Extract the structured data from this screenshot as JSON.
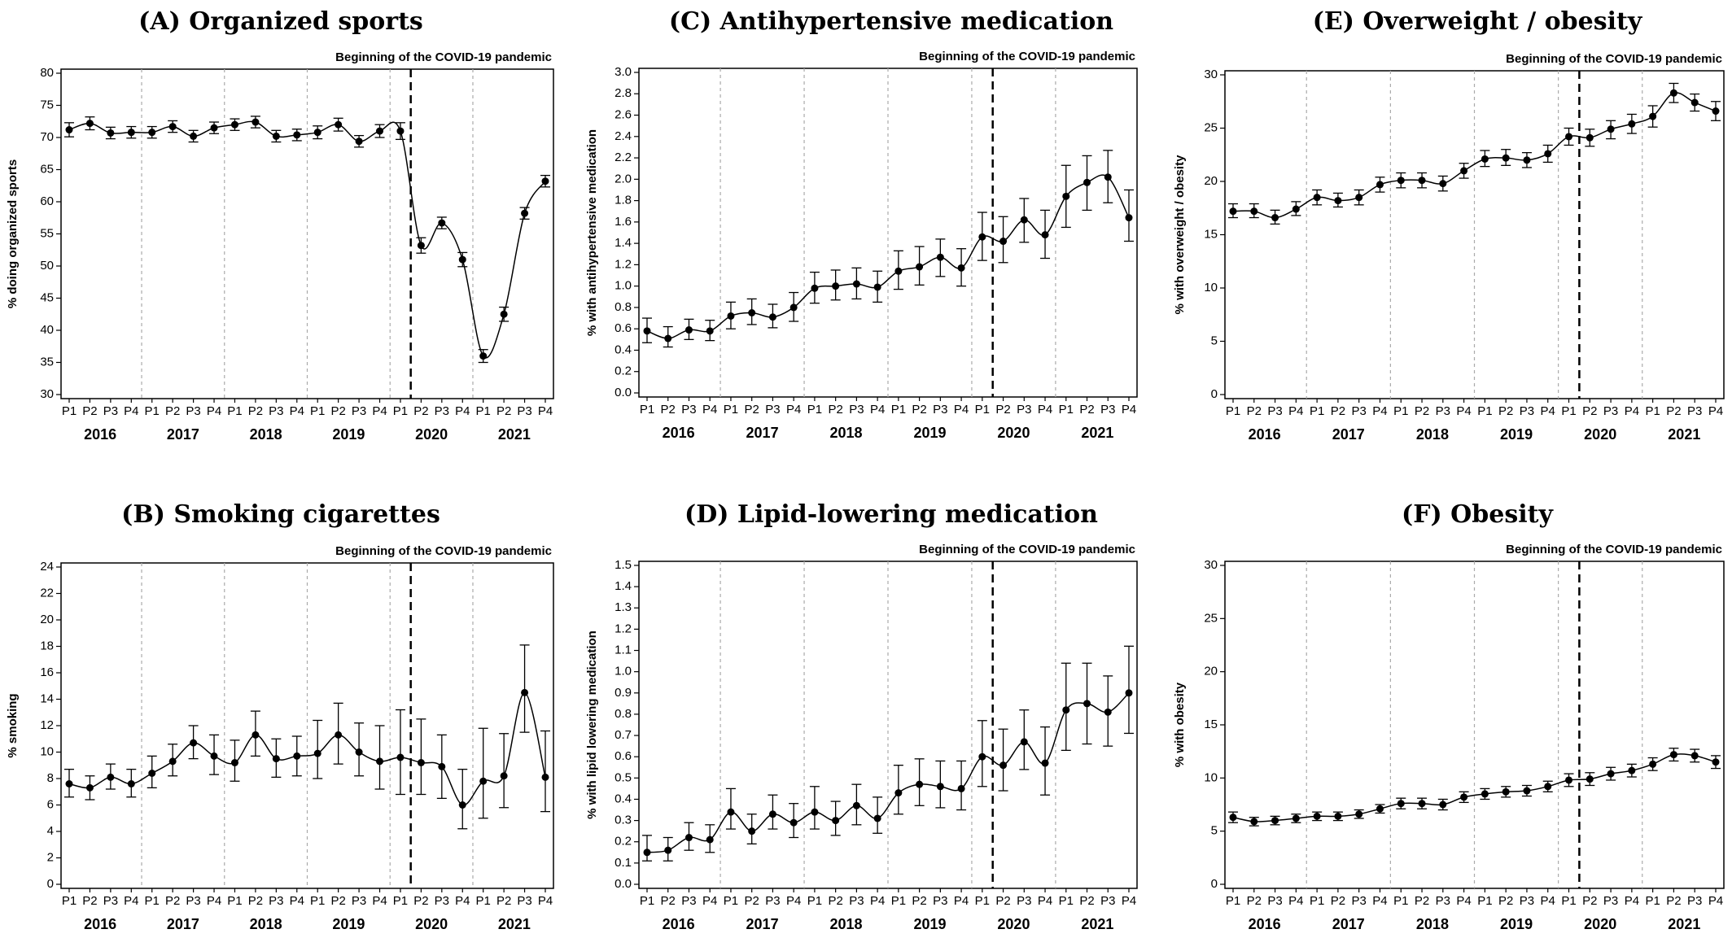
{
  "covid_label": "Beginning of the COVID-19 pandemic",
  "period_labels": [
    "P1",
    "P2",
    "P3",
    "P4"
  ],
  "years": [
    "2016",
    "2017",
    "2018",
    "2019",
    "2020",
    "2021"
  ],
  "chart_data": [
    {
      "id": "A",
      "type": "line",
      "title": "(A) Organized sports",
      "ylabel": "% doing organized sports",
      "ylim": [
        30,
        80
      ],
      "yticks": [
        30,
        35,
        40,
        45,
        50,
        55,
        60,
        65,
        70,
        75,
        80
      ],
      "tick_decimals": 0,
      "x_categories": [
        "2016 P1",
        "2016 P2",
        "2016 P3",
        "2016 P4",
        "2017 P1",
        "2017 P2",
        "2017 P3",
        "2017 P4",
        "2018 P1",
        "2018 P2",
        "2018 P3",
        "2018 P4",
        "2019 P1",
        "2019 P2",
        "2019 P3",
        "2019 P4",
        "2020 P1",
        "2020 P2",
        "2020 P3",
        "2020 P4",
        "2021 P1",
        "2021 P2",
        "2021 P3",
        "2021 P4"
      ],
      "values": [
        71.2,
        72.2,
        70.7,
        70.8,
        70.8,
        71.7,
        70.2,
        71.5,
        72.0,
        72.4,
        70.2,
        70.4,
        70.8,
        72.0,
        69.4,
        71.0,
        71.0,
        53.2,
        56.7,
        51.0,
        36.0,
        42.5,
        58.2,
        63.2
      ],
      "lower": [
        70.1,
        71.2,
        69.8,
        69.9,
        69.9,
        70.8,
        69.3,
        70.6,
        71.1,
        71.5,
        69.3,
        69.5,
        69.8,
        71.0,
        68.5,
        70.0,
        69.7,
        52.0,
        55.8,
        49.9,
        35.0,
        41.4,
        57.3,
        62.3
      ],
      "upper": [
        72.3,
        73.2,
        71.6,
        71.7,
        71.7,
        72.6,
        71.1,
        72.4,
        72.9,
        73.3,
        71.1,
        71.3,
        71.8,
        73.0,
        70.3,
        72.0,
        72.3,
        54.4,
        57.6,
        52.1,
        37.0,
        43.6,
        59.1,
        64.1
      ]
    },
    {
      "id": "B",
      "type": "line",
      "title": "(B) Smoking cigarettes",
      "ylabel": "% smoking",
      "ylim": [
        0,
        24
      ],
      "yticks": [
        0,
        2,
        4,
        6,
        8,
        10,
        12,
        14,
        16,
        18,
        20,
        22,
        24
      ],
      "tick_decimals": 0,
      "x_categories": [
        "2016 P1",
        "2016 P2",
        "2016 P3",
        "2016 P4",
        "2017 P1",
        "2017 P2",
        "2017 P3",
        "2017 P4",
        "2018 P1",
        "2018 P2",
        "2018 P3",
        "2018 P4",
        "2019 P1",
        "2019 P2",
        "2019 P3",
        "2019 P4",
        "2020 P1",
        "2020 P2",
        "2020 P3",
        "2020 P4",
        "2021 P1",
        "2021 P2",
        "2021 P3",
        "2021 P4"
      ],
      "values": [
        7.6,
        7.3,
        8.1,
        7.6,
        8.4,
        9.3,
        10.7,
        9.7,
        9.2,
        11.3,
        9.5,
        9.7,
        9.9,
        11.3,
        10.0,
        9.3,
        9.6,
        9.2,
        8.9,
        6.0,
        7.8,
        8.2,
        14.5,
        8.1
      ],
      "lower": [
        6.6,
        6.4,
        7.2,
        6.6,
        7.3,
        8.2,
        9.5,
        8.3,
        7.8,
        9.7,
        8.1,
        8.2,
        8.0,
        9.1,
        8.2,
        7.2,
        6.8,
        6.8,
        6.5,
        4.2,
        5.0,
        5.8,
        11.5,
        5.5
      ],
      "upper": [
        8.7,
        8.2,
        9.1,
        8.7,
        9.7,
        10.6,
        12.0,
        11.3,
        10.9,
        13.1,
        11.0,
        11.2,
        12.4,
        13.7,
        12.2,
        12.0,
        13.2,
        12.5,
        11.3,
        8.7,
        11.8,
        11.4,
        18.1,
        11.6
      ]
    },
    {
      "id": "C",
      "type": "line",
      "title": "(C) Antihypertensive medication",
      "ylabel": "% with antihypertensive medication",
      "ylim": [
        0,
        3.0
      ],
      "yticks": [
        0.0,
        0.2,
        0.4,
        0.6,
        0.8,
        1.0,
        1.2,
        1.4,
        1.6,
        1.8,
        2.0,
        2.2,
        2.4,
        2.6,
        2.8,
        3.0
      ],
      "tick_decimals": 1,
      "x_categories": [
        "2016 P1",
        "2016 P2",
        "2016 P3",
        "2016 P4",
        "2017 P1",
        "2017 P2",
        "2017 P3",
        "2017 P4",
        "2018 P1",
        "2018 P2",
        "2018 P3",
        "2018 P4",
        "2019 P1",
        "2019 P2",
        "2019 P3",
        "2019 P4",
        "2020 P1",
        "2020 P2",
        "2020 P3",
        "2020 P4",
        "2021 P1",
        "2021 P2",
        "2021 P3",
        "2021 P4"
      ],
      "values": [
        0.58,
        0.51,
        0.59,
        0.58,
        0.72,
        0.75,
        0.71,
        0.8,
        0.98,
        1.0,
        1.02,
        0.99,
        1.14,
        1.18,
        1.27,
        1.17,
        1.46,
        1.42,
        1.62,
        1.48,
        1.84,
        1.97,
        2.02,
        1.64
      ],
      "lower": [
        0.47,
        0.43,
        0.5,
        0.49,
        0.6,
        0.64,
        0.61,
        0.67,
        0.84,
        0.87,
        0.88,
        0.85,
        0.97,
        1.01,
        1.09,
        1.0,
        1.24,
        1.22,
        1.41,
        1.26,
        1.55,
        1.71,
        1.78,
        1.42
      ],
      "upper": [
        0.7,
        0.62,
        0.69,
        0.68,
        0.85,
        0.88,
        0.83,
        0.94,
        1.13,
        1.15,
        1.17,
        1.14,
        1.33,
        1.37,
        1.44,
        1.35,
        1.69,
        1.65,
        1.82,
        1.71,
        2.13,
        2.22,
        2.27,
        1.9
      ]
    },
    {
      "id": "D",
      "type": "line",
      "title": "(D) Lipid-lowering medication",
      "ylabel": "% with lipid lowering medication",
      "ylim": [
        0,
        1.5
      ],
      "yticks": [
        0.0,
        0.1,
        0.2,
        0.3,
        0.4,
        0.5,
        0.6,
        0.7,
        0.8,
        0.9,
        1.0,
        1.1,
        1.2,
        1.3,
        1.4,
        1.5
      ],
      "tick_decimals": 1,
      "x_categories": [
        "2016 P1",
        "2016 P2",
        "2016 P3",
        "2016 P4",
        "2017 P1",
        "2017 P2",
        "2017 P3",
        "2017 P4",
        "2018 P1",
        "2018 P2",
        "2018 P3",
        "2018 P4",
        "2019 P1",
        "2019 P2",
        "2019 P3",
        "2019 P4",
        "2020 P1",
        "2020 P2",
        "2020 P3",
        "2020 P4",
        "2021 P1",
        "2021 P2",
        "2021 P3",
        "2021 P4"
      ],
      "values": [
        0.15,
        0.16,
        0.22,
        0.21,
        0.34,
        0.25,
        0.33,
        0.29,
        0.34,
        0.3,
        0.37,
        0.31,
        0.43,
        0.47,
        0.46,
        0.45,
        0.6,
        0.56,
        0.67,
        0.57,
        0.82,
        0.85,
        0.81,
        0.9
      ],
      "lower": [
        0.11,
        0.11,
        0.16,
        0.15,
        0.26,
        0.19,
        0.26,
        0.22,
        0.26,
        0.23,
        0.28,
        0.24,
        0.33,
        0.37,
        0.36,
        0.35,
        0.46,
        0.44,
        0.54,
        0.42,
        0.63,
        0.66,
        0.65,
        0.71
      ],
      "upper": [
        0.23,
        0.22,
        0.29,
        0.28,
        0.45,
        0.33,
        0.42,
        0.38,
        0.46,
        0.39,
        0.47,
        0.41,
        0.56,
        0.59,
        0.58,
        0.58,
        0.77,
        0.73,
        0.82,
        0.74,
        1.04,
        1.04,
        0.98,
        1.12
      ]
    },
    {
      "id": "E",
      "type": "line",
      "title": "(E) Overweight / obesity",
      "ylabel": "% with overweight / obesity",
      "ylim": [
        0,
        30
      ],
      "yticks": [
        0,
        5,
        10,
        15,
        20,
        25,
        30
      ],
      "tick_decimals": 0,
      "x_categories": [
        "2016 P1",
        "2016 P2",
        "2016 P3",
        "2016 P4",
        "2017 P1",
        "2017 P2",
        "2017 P3",
        "2017 P4",
        "2018 P1",
        "2018 P2",
        "2018 P3",
        "2018 P4",
        "2019 P1",
        "2019 P2",
        "2019 P3",
        "2019 P4",
        "2020 P1",
        "2020 P2",
        "2020 P3",
        "2020 P4",
        "2021 P1",
        "2021 P2",
        "2021 P3",
        "2021 P4"
      ],
      "values": [
        17.2,
        17.2,
        16.6,
        17.4,
        18.5,
        18.2,
        18.5,
        19.7,
        20.1,
        20.1,
        19.8,
        21.0,
        22.1,
        22.2,
        22.0,
        22.6,
        24.2,
        24.1,
        24.9,
        25.4,
        26.1,
        28.3,
        27.4,
        26.6
      ],
      "lower": [
        16.6,
        16.6,
        16.0,
        16.8,
        17.8,
        17.6,
        17.8,
        19.0,
        19.4,
        19.4,
        19.1,
        20.3,
        21.4,
        21.5,
        21.3,
        21.8,
        23.4,
        23.3,
        24.0,
        24.5,
        25.1,
        27.4,
        26.6,
        25.7
      ],
      "upper": [
        17.9,
        17.9,
        17.3,
        18.1,
        19.2,
        18.9,
        19.2,
        20.4,
        20.8,
        20.8,
        20.5,
        21.7,
        22.9,
        23.0,
        22.7,
        23.4,
        25.0,
        24.9,
        25.7,
        26.3,
        27.1,
        29.2,
        28.2,
        27.5
      ]
    },
    {
      "id": "F",
      "type": "line",
      "title": "(F) Obesity",
      "ylabel": "% with obesity",
      "ylim": [
        0,
        30
      ],
      "yticks": [
        0,
        5,
        10,
        15,
        20,
        25,
        30
      ],
      "tick_decimals": 0,
      "x_categories": [
        "2016 P1",
        "2016 P2",
        "2016 P3",
        "2016 P4",
        "2017 P1",
        "2017 P2",
        "2017 P3",
        "2017 P4",
        "2018 P1",
        "2018 P2",
        "2018 P3",
        "2018 P4",
        "2019 P1",
        "2019 P2",
        "2019 P3",
        "2019 P4",
        "2020 P1",
        "2020 P2",
        "2020 P3",
        "2020 P4",
        "2021 P1",
        "2021 P2",
        "2021 P3",
        "2021 P4"
      ],
      "values": [
        6.3,
        5.9,
        6.0,
        6.2,
        6.4,
        6.4,
        6.6,
        7.1,
        7.6,
        7.6,
        7.5,
        8.2,
        8.5,
        8.7,
        8.8,
        9.2,
        9.8,
        9.9,
        10.4,
        10.7,
        11.3,
        12.2,
        12.1,
        11.5
      ],
      "lower": [
        5.8,
        5.5,
        5.6,
        5.8,
        6.0,
        6.0,
        6.2,
        6.7,
        7.1,
        7.1,
        7.0,
        7.7,
        8.0,
        8.2,
        8.3,
        8.7,
        9.2,
        9.3,
        9.8,
        10.1,
        10.7,
        11.6,
        11.5,
        10.9
      ],
      "upper": [
        6.8,
        6.3,
        6.4,
        6.6,
        6.8,
        6.8,
        7.0,
        7.5,
        8.1,
        8.1,
        8.0,
        8.7,
        9.0,
        9.2,
        9.3,
        9.7,
        10.4,
        10.5,
        11.0,
        11.3,
        11.9,
        12.8,
        12.7,
        12.1
      ]
    }
  ]
}
